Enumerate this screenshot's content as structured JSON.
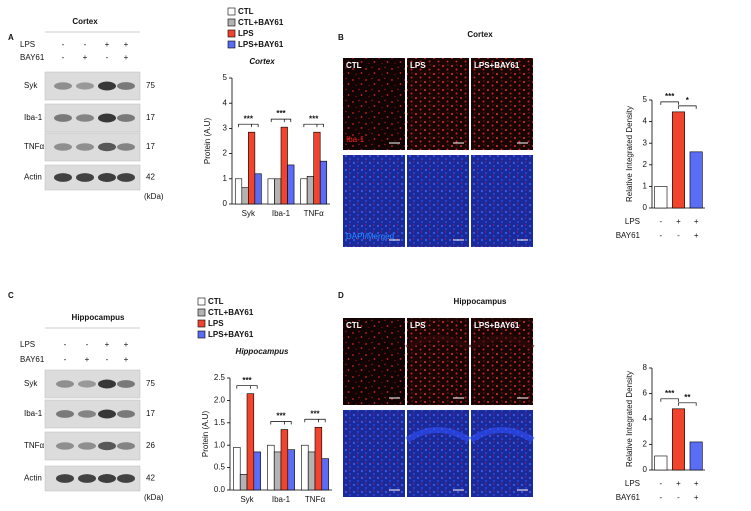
{
  "panels": [
    {
      "label": "A",
      "region": "Cortex",
      "treatments": [
        {
          "name": "LPS",
          "marks": [
            "-",
            "-",
            "+",
            "+"
          ]
        },
        {
          "name": "BAY61",
          "marks": [
            "-",
            "+",
            "-",
            "+"
          ]
        }
      ],
      "blots": [
        {
          "protein": "Syk",
          "mw": 75
        },
        {
          "protein": "Iba-1",
          "mw": 17
        },
        {
          "protein": "TNFα",
          "mw": 17
        },
        {
          "protein": "Actin",
          "mw": 42
        }
      ],
      "mw_unit": "(kDa)"
    },
    {
      "label": "B",
      "title": "Cortex",
      "image_columns": [
        "CTL",
        "LPS",
        "LPS+BAY61"
      ],
      "image_rows": [
        "Iba-1",
        "DAPI/Merged"
      ]
    },
    {
      "label": "C",
      "region": "Hippocampus",
      "treatments": [
        {
          "name": "LPS",
          "marks": [
            "-",
            "-",
            "+",
            "+"
          ]
        },
        {
          "name": "BAY61",
          "marks": [
            "-",
            "+",
            "-",
            "+"
          ]
        }
      ],
      "blots": [
        {
          "protein": "Syk",
          "mw": 75
        },
        {
          "protein": "Iba-1",
          "mw": 17
        },
        {
          "protein": "TNFα",
          "mw": 26
        },
        {
          "protein": "Actin",
          "mw": 42
        }
      ],
      "mw_unit": "(kDa)"
    },
    {
      "label": "D",
      "title": "Hippocampus",
      "image_columns": [
        "CTL",
        "LPS",
        "LPS+BAY61"
      ]
    }
  ],
  "chart_data": [
    {
      "type": "bar",
      "title": "Cortex",
      "ylabel": "Protein (A.U)",
      "categories": [
        "Syk",
        "Iba-1",
        "TNFα"
      ],
      "series": [
        {
          "name": "CTL",
          "color": "#ffffff",
          "values": [
            1.0,
            1.0,
            1.0
          ]
        },
        {
          "name": "CTL+BAY61",
          "color": "#b3b3b3",
          "values": [
            0.65,
            1.0,
            1.1
          ]
        },
        {
          "name": "LPS",
          "color": "#f0442e",
          "values": [
            2.85,
            3.05,
            2.85
          ]
        },
        {
          "name": "LPS+BAY61",
          "color": "#5b6cf5",
          "values": [
            1.2,
            1.55,
            1.7
          ]
        }
      ],
      "ylim": [
        0,
        5
      ],
      "yticks": [
        0,
        1,
        2,
        3,
        4,
        5
      ],
      "annotations": [
        "***",
        "***",
        "***"
      ]
    },
    {
      "type": "bar",
      "ylabel": "Relative Integrated Density",
      "values": [
        1.0,
        4.45,
        2.6
      ],
      "colors": [
        "#ffffff",
        "#f0442e",
        "#5b6cf5"
      ],
      "ylim": [
        0,
        5
      ],
      "yticks": [
        0,
        1,
        2,
        3,
        4,
        5
      ],
      "annotations": [
        "***",
        "*"
      ],
      "treatments": [
        {
          "name": "LPS",
          "marks": [
            "-",
            "+",
            "+"
          ]
        },
        {
          "name": "BAY61",
          "marks": [
            "-",
            "-",
            "+"
          ]
        }
      ]
    },
    {
      "type": "bar",
      "title": "Hippocampus",
      "ylabel": "Protein (A.U)",
      "categories": [
        "Syk",
        "Iba-1",
        "TNFα"
      ],
      "series": [
        {
          "name": "CTL",
          "color": "#ffffff",
          "values": [
            0.95,
            1.0,
            1.0
          ]
        },
        {
          "name": "CTL+BAY61",
          "color": "#b3b3b3",
          "values": [
            0.35,
            0.85,
            0.85
          ]
        },
        {
          "name": "LPS",
          "color": "#f0442e",
          "values": [
            2.15,
            1.35,
            1.4
          ]
        },
        {
          "name": "LPS+BAY61",
          "color": "#5b6cf5",
          "values": [
            0.85,
            0.9,
            0.7
          ]
        }
      ],
      "ylim": [
        0,
        2.5
      ],
      "yticks": [
        {
          "value": 0,
          "label": "0.0"
        },
        0.5,
        {
          "value": 1,
          "label": "1.0"
        },
        1.5,
        {
          "value": 2,
          "label": "2.0"
        },
        2.5
      ],
      "annotations": [
        "***",
        "***",
        "***"
      ]
    },
    {
      "type": "bar",
      "ylabel": "Relative Integrated Density",
      "values": [
        1.1,
        4.8,
        2.2
      ],
      "colors": [
        "#ffffff",
        "#f0442e",
        "#5b6cf5"
      ],
      "ylim": [
        0,
        8
      ],
      "yticks": [
        0,
        2,
        4,
        6,
        8
      ],
      "annotations": [
        "***",
        "**"
      ],
      "treatments": [
        {
          "name": "LPS",
          "marks": [
            "-",
            "+",
            "+"
          ]
        },
        {
          "name": "BAY61",
          "marks": [
            "-",
            "-",
            "+"
          ]
        }
      ]
    }
  ]
}
